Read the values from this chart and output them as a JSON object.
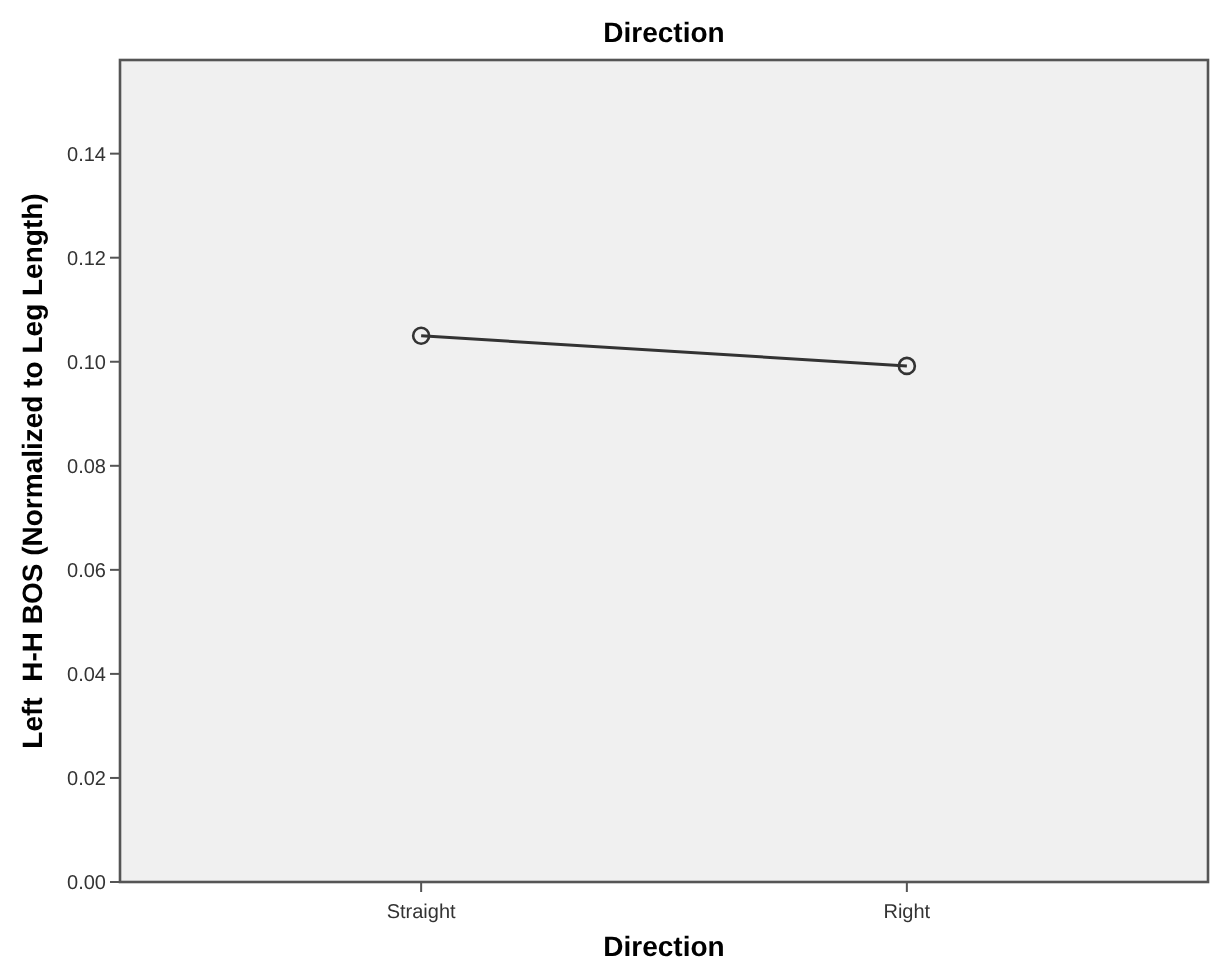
{
  "chart_data": {
    "type": "line",
    "title": "Direction",
    "xlabel": "Direction",
    "ylabel": "Left  H-H BOS (Normalized to Leg Length)",
    "categories": [
      "Straight",
      "Right"
    ],
    "series": [
      {
        "color": "#333333",
        "values": [
          0.105,
          0.0992
        ]
      }
    ],
    "ylim": [
      0,
      0.158
    ],
    "yticks": [
      {
        "value": 0,
        "label": "0.00"
      },
      {
        "value": 0.02,
        "label": "0.02"
      },
      {
        "value": 0.04,
        "label": "0.04"
      },
      {
        "value": 0.06,
        "label": "0.06"
      },
      {
        "value": 0.08,
        "label": "0.08"
      },
      {
        "value": 0.1,
        "label": "0.10"
      },
      {
        "value": 0.12,
        "label": "0.12"
      },
      {
        "value": 0.14,
        "label": "0.14"
      }
    ],
    "marker": "circle",
    "line_style": "solid",
    "grid": false
  }
}
